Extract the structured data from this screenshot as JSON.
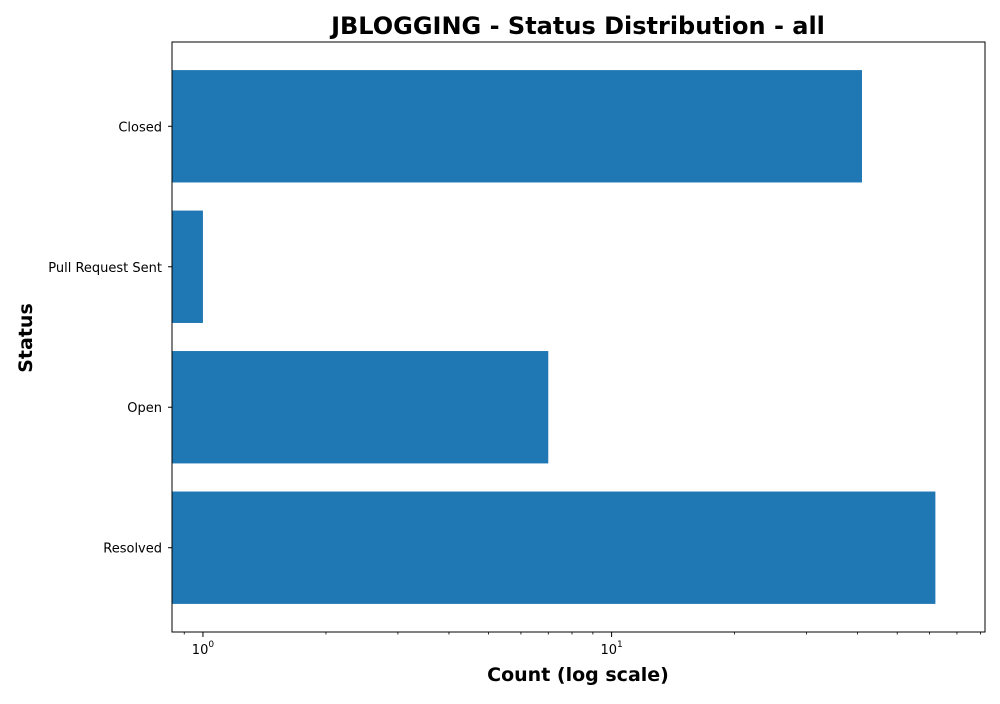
{
  "chart_data": {
    "type": "bar",
    "orientation": "horizontal",
    "title": "JBLOGGING - Status Distribution - all",
    "xlabel": "Count (log scale)",
    "ylabel": "Status",
    "x_scale": "log",
    "xlim": [
      0.84,
      82
    ],
    "categories": [
      "Closed",
      "Pull Request Sent",
      "Open",
      "Resolved"
    ],
    "values": [
      41,
      1,
      7,
      62
    ],
    "x_ticks": [
      {
        "value": 1,
        "base": "10",
        "exponent": "0"
      },
      {
        "value": 10,
        "base": "10",
        "exponent": "1"
      }
    ],
    "grid": false,
    "legend": "none",
    "colors": {
      "bar": "#1f77b4",
      "axis": "#000000",
      "background": "#ffffff"
    }
  }
}
